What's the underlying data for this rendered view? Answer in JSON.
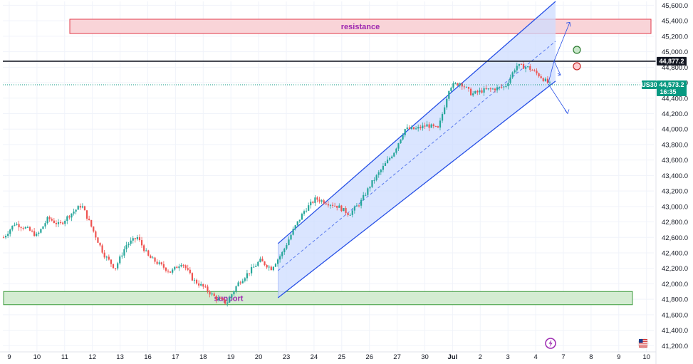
{
  "chart_data": {
    "type": "candlestick",
    "symbol": "US30",
    "y_ticks": [
      "45,600.0",
      "45,400.0",
      "45,200.0",
      "45,000.0",
      "44,800.0",
      "44,600.0",
      "44,400.0",
      "44,200.0",
      "44,000.0",
      "43,800.0",
      "43,600.0",
      "43,400.0",
      "43,200.0",
      "43,000.0",
      "42,800.0",
      "42,600.0",
      "42,400.0",
      "42,200.0",
      "42,000.0",
      "41,800.0",
      "41,600.0",
      "41,400.0",
      "41,200.0"
    ],
    "y_tick_values": [
      45600,
      45400,
      45200,
      45000,
      44800,
      44600,
      44400,
      44200,
      44000,
      43800,
      43600,
      43400,
      43200,
      43000,
      42800,
      42600,
      42400,
      42200,
      42000,
      41800,
      41600,
      41400,
      41200
    ],
    "x_ticks": [
      "9",
      "10",
      "11",
      "12",
      "13",
      "16",
      "17",
      "18",
      "19",
      "20",
      "23",
      "24",
      "25",
      "26",
      "27",
      "30",
      "Jul",
      "2",
      "3",
      "4",
      "7",
      "8",
      "9",
      "10"
    ],
    "ylim": [
      41120,
      45650
    ],
    "resistance_zone": {
      "label": "resistance",
      "low": 45235,
      "high": 45420
    },
    "support_zone": {
      "label": "support",
      "low": 41730,
      "high": 41900
    },
    "horizontal_line": {
      "value": 44877.2,
      "label": "44,877.2"
    },
    "current_price": {
      "value": 44573.2,
      "label": "44,573.2",
      "countdown": "16:35"
    },
    "price_path": [
      [
        0,
        42600
      ],
      [
        1,
        42780
      ],
      [
        2,
        42720
      ],
      [
        3,
        42620
      ],
      [
        4,
        42850
      ],
      [
        5,
        42760
      ],
      [
        6,
        42900
      ],
      [
        7,
        43020
      ],
      [
        8,
        42700
      ],
      [
        9,
        42380
      ],
      [
        10,
        42200
      ],
      [
        11,
        42500
      ],
      [
        12,
        42600
      ],
      [
        13,
        42350
      ],
      [
        14,
        42250
      ],
      [
        15,
        42150
      ],
      [
        16,
        42280
      ],
      [
        17,
        42050
      ],
      [
        18,
        41950
      ],
      [
        19,
        41820
      ],
      [
        20,
        41750
      ],
      [
        21,
        42000
      ],
      [
        22,
        42150
      ],
      [
        23,
        42300
      ],
      [
        24,
        42200
      ],
      [
        25,
        42400
      ],
      [
        26,
        42700
      ],
      [
        27,
        42950
      ],
      [
        28,
        43100
      ],
      [
        29,
        43050
      ],
      [
        30,
        43000
      ],
      [
        31,
        42900
      ],
      [
        32,
        43050
      ],
      [
        33,
        43300
      ],
      [
        34,
        43500
      ],
      [
        35,
        43700
      ],
      [
        36,
        44000
      ],
      [
        37,
        44000
      ],
      [
        38,
        44050
      ],
      [
        39,
        44000
      ],
      [
        40,
        44550
      ],
      [
        41,
        44600
      ],
      [
        42,
        44450
      ],
      [
        43,
        44500
      ],
      [
        44,
        44520
      ],
      [
        45,
        44550
      ],
      [
        46,
        44820
      ],
      [
        47,
        44800
      ],
      [
        48,
        44700
      ],
      [
        49,
        44573
      ]
    ],
    "channel": {
      "start_x": 23,
      "end_x": 24.8,
      "lower_start": 41820,
      "lower_end": 44620,
      "upper_start": 42520,
      "upper_end": 45650
    },
    "projection_arrows": {
      "up_target": 45380,
      "down_target": 44200
    },
    "colors": {
      "up": "#26a69a",
      "down": "#ef5350",
      "resistance_fill": "#f9d4d8",
      "resistance_border": "#e23c4d",
      "resistance_text": "#9c27b0",
      "support_fill": "#d4ecd2",
      "support_border": "#3d9b3d",
      "support_text": "#9c27b0",
      "channel_fill": "#cddcff",
      "channel_line": "#2750e6",
      "price_tag": "#089981",
      "line_tag": "#131722"
    }
  }
}
